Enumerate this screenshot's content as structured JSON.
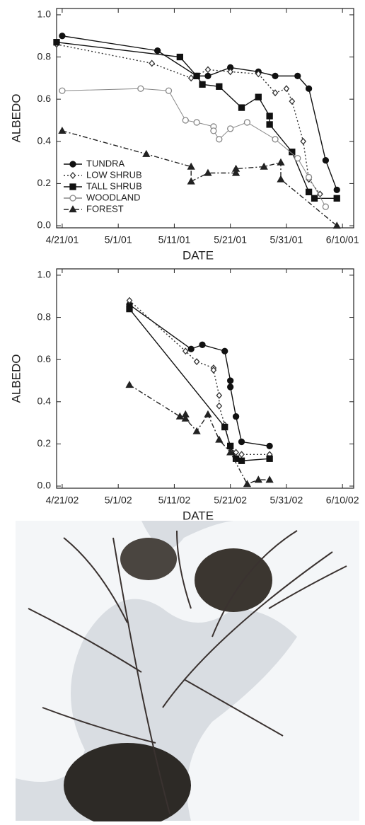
{
  "chart_data": [
    {
      "type": "line",
      "x_label": "DATE",
      "y_label": "ALBEDO",
      "xlim": [
        "4/20/01",
        "6/12/01"
      ],
      "xticks": [
        "4/21/01",
        "5/1/01",
        "5/11/01",
        "5/21/01",
        "5/31/01",
        "6/10/01"
      ],
      "ylim": [
        -0.01,
        1.03
      ],
      "yticks": [
        {
          "value": 0,
          "label": "0.0"
        },
        0.2,
        0.4,
        0.6,
        0.8,
        {
          "value": 1,
          "label": "1.0"
        }
      ],
      "legend": "lower left",
      "series": [
        {
          "name": "TUNDRA",
          "color": "#111111",
          "marker": "circle-filled",
          "dash": "solid",
          "x": [
            "4/21/01",
            "5/8/01",
            "5/15/01",
            "5/17/01",
            "5/21/01",
            "5/26/01",
            "5/29/01",
            "6/2/01",
            "6/4/01",
            "6/7/01",
            "6/9/01"
          ],
          "values": [
            0.9,
            0.83,
            0.71,
            0.71,
            0.75,
            0.73,
            0.71,
            0.71,
            0.65,
            0.31,
            0.17
          ]
        },
        {
          "name": "LOW SHRUB",
          "color": "#333333",
          "marker": "diamond-open",
          "dash": "dotted",
          "x": [
            "4/20/01",
            "5/7/01",
            "5/14/01",
            "5/17/01",
            "5/21/01",
            "5/26/01",
            "5/29/01",
            "5/31/01",
            "6/1/01",
            "6/3/01",
            "6/4/01",
            "6/6/01"
          ],
          "values": [
            0.86,
            0.77,
            0.7,
            0.74,
            0.73,
            0.72,
            0.63,
            0.65,
            0.59,
            0.4,
            0.22,
            0.15
          ]
        },
        {
          "name": "TALL SHRUB",
          "color": "#111111",
          "marker": "square-filled",
          "dash": "solid",
          "x": [
            "4/20/01",
            "5/12/01",
            "5/15/01",
            "5/16/01",
            "5/19/01",
            "5/23/01",
            "5/26/01",
            "5/28/01",
            "5/28/01",
            "6/1/01",
            "6/4/01",
            "6/5/01",
            "6/9/01"
          ],
          "values": [
            0.87,
            0.8,
            0.71,
            0.67,
            0.66,
            0.56,
            0.61,
            0.52,
            0.48,
            0.35,
            0.16,
            0.13,
            0.13
          ]
        },
        {
          "name": "WOODLAND",
          "color": "#888888",
          "marker": "circle-open",
          "dash": "solid",
          "x": [
            "4/21/01",
            "5/5/01",
            "5/10/01",
            "5/13/01",
            "5/15/01",
            "5/18/01",
            "5/18/01",
            "5/19/01",
            "5/21/01",
            "5/24/01",
            "5/29/01",
            "6/2/01",
            "6/4/01",
            "6/7/01"
          ],
          "values": [
            0.64,
            0.65,
            0.64,
            0.5,
            0.49,
            0.47,
            0.45,
            0.41,
            0.46,
            0.49,
            0.41,
            0.32,
            0.23,
            0.09
          ]
        },
        {
          "name": "FOREST",
          "color": "#222222",
          "marker": "triangle-filled",
          "dash": "dashdot",
          "x": [
            "4/21/01",
            "5/6/01",
            "5/14/01",
            "5/14/01",
            "5/17/01",
            "5/22/01",
            "5/22/01",
            "5/27/01",
            "5/30/01",
            "5/30/01",
            "6/9/01"
          ],
          "values": [
            0.45,
            0.34,
            0.28,
            0.21,
            0.25,
            0.25,
            0.27,
            0.28,
            0.3,
            0.22,
            0.0
          ]
        }
      ]
    },
    {
      "type": "line",
      "x_label": "DATE",
      "y_label": "ALBEDO",
      "xlim": [
        "4/20/02",
        "6/12/02"
      ],
      "xticks": [
        "4/21/02",
        "5/1/02",
        "5/11/02",
        "5/21/02",
        "5/31/02",
        "6/10/02"
      ],
      "ylim": [
        -0.01,
        1.03
      ],
      "yticks": [
        {
          "value": 0,
          "label": "0.0"
        },
        0.2,
        0.4,
        0.6,
        0.8,
        {
          "value": 1,
          "label": "1.0"
        }
      ],
      "series": [
        {
          "color": "#111111",
          "marker": "circle-filled",
          "dash": "solid",
          "x": [
            "5/3/02",
            "5/14/02",
            "5/16/02",
            "5/20/02",
            "5/21/02",
            "5/21/02",
            "5/22/02",
            "5/23/02",
            "5/28/02"
          ],
          "values": [
            0.86,
            0.65,
            0.67,
            0.64,
            0.5,
            0.47,
            0.33,
            0.21,
            0.19
          ]
        },
        {
          "color": "#333333",
          "marker": "diamond-open",
          "dash": "dotted",
          "x": [
            "5/3/02",
            "5/13/02",
            "5/15/02",
            "5/18/02",
            "5/18/02",
            "5/19/02",
            "5/19/02",
            "5/20/02",
            "5/21/02",
            "5/22/02",
            "5/23/02",
            "5/28/02"
          ],
          "values": [
            0.88,
            0.64,
            0.59,
            0.56,
            0.55,
            0.43,
            0.38,
            0.29,
            0.18,
            0.16,
            0.15,
            0.15
          ]
        },
        {
          "color": "#111111",
          "marker": "square-filled",
          "dash": "solid",
          "x": [
            "5/3/02",
            "5/20/02",
            "5/21/02",
            "5/22/02",
            "5/23/02",
            "5/28/02"
          ],
          "values": [
            0.84,
            0.28,
            0.19,
            0.13,
            0.12,
            0.13
          ]
        },
        {
          "color": "#222222",
          "marker": "triangle-filled",
          "dash": "dashdot",
          "x": [
            "5/3/02",
            "5/12/02",
            "5/13/02",
            "5/13/02",
            "5/15/02",
            "5/17/02",
            "5/19/02",
            "5/21/02",
            "5/24/02",
            "5/26/02",
            "5/28/02"
          ],
          "values": [
            0.48,
            0.33,
            0.34,
            0.32,
            0.26,
            0.34,
            0.22,
            0.16,
            0.01,
            0.03,
            0.03
          ]
        }
      ]
    }
  ]
}
